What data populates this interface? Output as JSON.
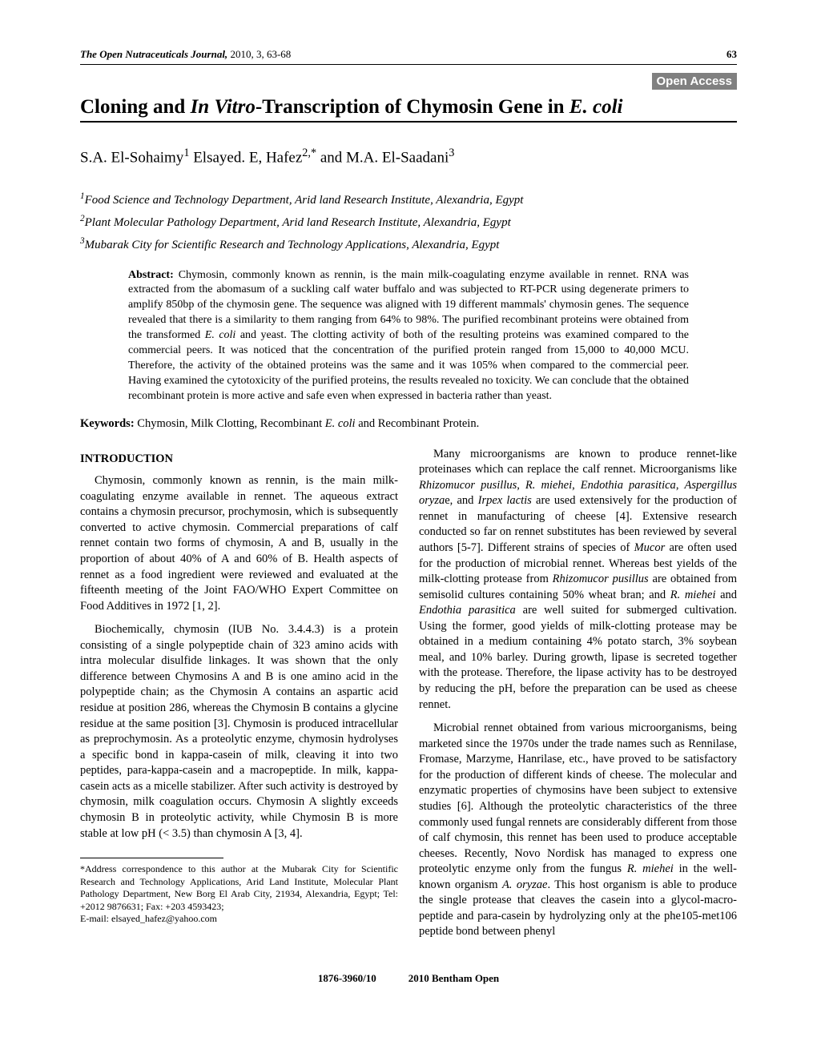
{
  "header": {
    "journal": "The Open Nutraceuticals Journal,",
    "year_vol": " 2010, 3, 63-68",
    "page": "63"
  },
  "open_access": "Open Access",
  "title_plain1": "Cloning and ",
  "title_ital1": "In Vitro",
  "title_plain2": "-Transcription of Chymosin Gene in ",
  "title_ital2": "E. coli",
  "authors_html": "S.A. El-Sohaimy<sup>1</sup> Elsayed. E, Hafez<sup>2,*</sup> and M.A. El-Saadani<sup>3</sup>",
  "affiliations": [
    "<sup>1</sup>Food Science and Technology Department, Arid land Research Institute, Alexandria, Egypt",
    "<sup>2</sup>Plant Molecular Pathology Department, Arid land Research Institute, Alexandria, Egypt",
    "<sup>3</sup>Mubarak City for Scientific Research and Technology Applications, Alexandria, Egypt"
  ],
  "abstract_label": "Abstract:",
  "abstract": " Chymosin, commonly known as rennin, is the main milk-coagulating enzyme available in rennet. RNA was extracted from the abomasum of a suckling calf water buffalo and was subjected to RT-PCR using degenerate primers to amplify 850bp of the chymosin gene. The sequence was aligned with 19 different mammals' chymosin genes. The sequence revealed that there is a similarity to them ranging from 64% to 98%. The purified recombinant proteins were obtained from the transformed <span class=\"ital\">E. coli</span> and yeast. The clotting activity of both of the resulting proteins was examined compared to the commercial peers. It was noticed that the concentration of the purified protein ranged from 15,000 to 40,000 MCU. Therefore, the activity of the obtained proteins was the same and it was 105% when compared to the commercial peer. Having examined the cytotoxicity of the purified proteins, the results revealed no toxicity. We can conclude that the obtained recombinant protein is more active and safe even when expressed in bacteria rather than yeast.",
  "keywords_label": "Keywords:",
  "keywords": " Chymosin, Milk Clotting, Recombinant <span class=\"ital\">E. coli</span> and Recombinant Protein.",
  "intro_head": "INTRODUCTION",
  "left_paras": [
    "Chymosin, commonly known as rennin, is the main milk-coagulating enzyme available in rennet. The aqueous extract contains a chymosin precursor, prochymosin, which is subsequently converted to active chymosin. Commercial preparations of calf rennet contain two forms of chymosin, A and B, usually in the proportion of about 40% of A and 60% of B. Health aspects of rennet as a food ingredient were reviewed and evaluated at the fifteenth meeting of the Joint FAO/WHO Expert Committee on Food Additives in 1972 [1, 2].",
    "Biochemically, chymosin (IUB No. 3.4.4.3) is a protein consisting of a single polypeptide chain of 323 amino acids with intra molecular disulfide linkages. It was shown that the only difference between Chymosins A and B is one amino acid in the polypeptide chain; as the Chymosin A contains an aspartic acid residue at position 286, whereas the Chymosin B contains a glycine residue at the same position [3]. Chymosin is produced intracellular as preprochymosin. As a proteolytic enzyme, chymosin hydrolyses a specific bond in kappa-casein of milk, cleaving it into two peptides, para-kappa-casein and a macropeptide. In milk, kappa-casein acts as a micelle stabilizer. After such activity is destroyed by chymosin, milk coagulation occurs. Chymosin A slightly exceeds chymosin B in proteolytic activity, while Chymosin B is more stable at low pH (< 3.5) than chymosin A [3, 4]."
  ],
  "right_paras": [
    "Many microorganisms are known to produce rennet-like proteinases which can replace the calf rennet. Microorganisms like <span class=\"ital\">Rhizomucor pusillus</span>, <span class=\"ital\">R. miehei</span>, <span class=\"ital\">Endothia parasitica</span>, <span class=\"ital\">Aspergillus oryza</span>e, and <span class=\"ital\">Irpex lactis</span> are used extensively for the production of rennet in manufacturing of cheese [4]. Extensive research conducted so far on rennet substitutes has been reviewed by several authors [5-7]. Different strains of species of <span class=\"ital\">Mucor</span> are often used for the production of microbial rennet. Whereas best yields of the milk-clotting protease from <span class=\"ital\">Rhizomucor pusillus</span> are obtained from semisolid cultures containing 50% wheat bran; and <span class=\"ital\">R. miehei</span> and <span class=\"ital\">Endothia parasitica</span> are well suited for submerged cultivation. Using the former, good yields of milk-clotting protease may be obtained in a medium containing 4% potato starch, 3% soybean meal, and 10% barley. During growth, lipase is secreted together with the protease. Therefore, the lipase activity has to be destroyed by reducing the pH, before the preparation can be used as cheese rennet.",
    "Microbial rennet obtained from various microorganisms, being marketed since the 1970s under the trade names such as Rennilase, Fromase, Marzyme, Hanrilase, etc., have proved to be satisfactory for the production of different kinds of cheese. The molecular and enzymatic properties of chymosins have been subject to extensive studies [6]. Although the proteolytic characteristics of the three commonly used fungal rennets are considerably different from those of calf chymosin, this rennet has been used to produce acceptable cheeses. Recently, Novo Nordisk has managed to express one proteolytic enzyme only from the fungus <span class=\"ital\">R. miehei</span> in the well-known organism <span class=\"ital\">A. oryzae</span>. This host organism is able to produce the single protease that cleaves the casein into a glycol-macro-peptide and para-casein by hydrolyzing only at the phe105-met106 peptide bond between phenyl"
  ],
  "correspondence": "*Address correspondence to this author at the Mubarak City for Scientific Research and Technology Applications, Arid Land Institute, Molecular Plant Pathology Department, New Borg El Arab City, 21934, Alexandria, Egypt; Tel: +2012 9876631; Fax: +203 4593423;<br>E-mail: elsayed_hafez@yahoo.com",
  "footer": {
    "issn": "1876-3960/10",
    "copyright": "2010 Bentham Open"
  }
}
